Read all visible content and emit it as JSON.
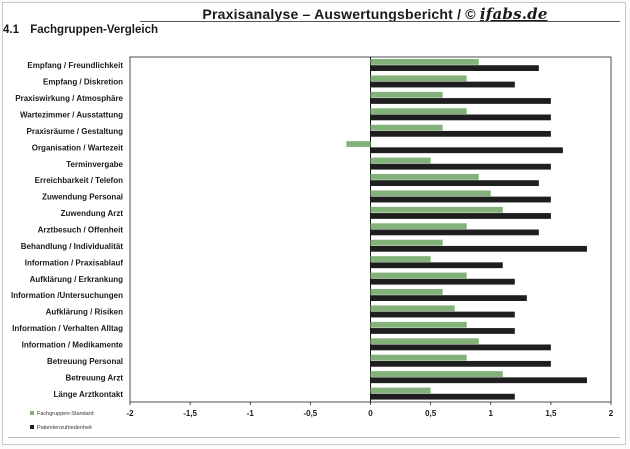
{
  "header": {
    "title": "Praxisanalyse – Auswertungsbericht / ©",
    "brand": "ifabs.de"
  },
  "section": {
    "number": "4.1",
    "title": "Fachgruppen-Vergleich"
  },
  "colors": {
    "series_standard": "#82b27a",
    "series_patient": "#1e1e1e"
  },
  "chart_data": {
    "type": "bar",
    "orientation": "horizontal",
    "categories": [
      "Empfang / Freundlichkeit",
      "Empfang / Diskretion",
      "Praxiswirkung / Atmosphäre",
      "Wartezimmer / Ausstattung",
      "Praxisräume / Gestaltung",
      "Organisation / Wartezeit",
      "Terminvergabe",
      "Erreichbarkeit / Telefon",
      "Zuwendung Personal",
      "Zuwendung Arzt",
      "Arztbesuch / Offenheit",
      "Behandlung / Individualität",
      "Information / Praxisablauf",
      "Aufklärung / Erkrankung",
      "Information /Untersuchungen",
      "Aufklärung / Risiken",
      "Information / Verhalten Alltag",
      "Information / Medikamente",
      "Betreuung Personal",
      "Betreuung Arzt",
      "Länge Arztkontakt"
    ],
    "series": [
      {
        "name": "Fachgruppen-Standard",
        "values": [
          0.9,
          0.8,
          0.6,
          0.8,
          0.6,
          -0.2,
          0.5,
          0.9,
          1.0,
          1.1,
          0.8,
          0.6,
          0.5,
          0.8,
          0.6,
          0.7,
          0.8,
          0.9,
          0.8,
          1.1,
          0.5
        ]
      },
      {
        "name": "Patientenzufriedenheit",
        "values": [
          1.4,
          1.2,
          1.5,
          1.5,
          1.5,
          1.6,
          1.5,
          1.4,
          1.5,
          1.5,
          1.4,
          1.8,
          1.1,
          1.2,
          1.3,
          1.2,
          1.2,
          1.5,
          1.5,
          1.8,
          1.2
        ]
      }
    ],
    "x_ticks": [
      "-2",
      "-1,5",
      "-1",
      "-0,5",
      "0",
      "0,5",
      "1",
      "1,5",
      "2"
    ],
    "xlim": [
      -2,
      2
    ],
    "grid": false,
    "legend_position": "bottom-left"
  }
}
